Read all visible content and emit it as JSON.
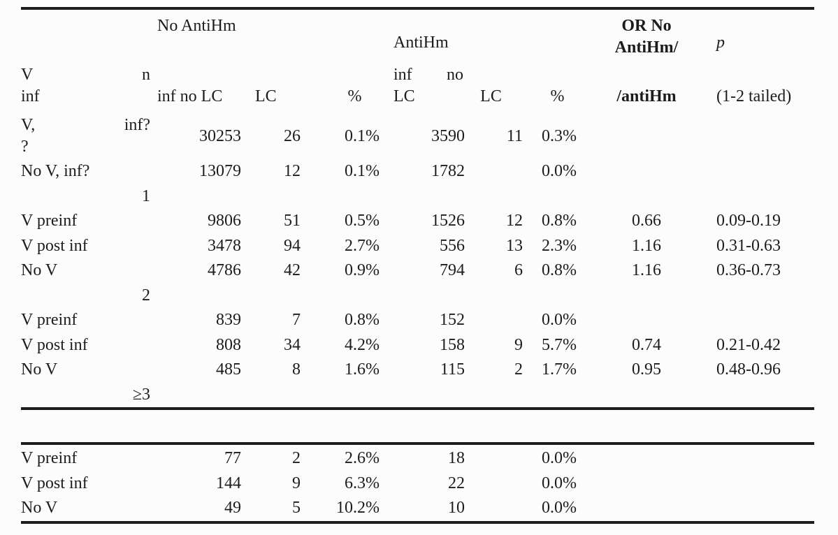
{
  "ink_color": "#1d1d1d",
  "table": {
    "header": {
      "v": "V",
      "v_line2": "inf",
      "n": "n",
      "no_antihm": "No AntiHm",
      "no_antihm_sub": "inf no LC",
      "lc_1": "LC",
      "pct_1": "%",
      "antihm": "AntiHm",
      "antihm_sub_inf": "inf",
      "antihm_sub_no": "no",
      "antihm_sub_lc": "LC",
      "lc_2": "LC",
      "pct_2": "%",
      "or_top": "OR No AntiHm/",
      "or_sub": "/antiHm",
      "p": "p",
      "p_sub": "(1-2 tailed)"
    },
    "section_a": [
      {
        "type": "split",
        "l": "V,",
        "r": "inf?",
        "l2": "?",
        "c": [
          "30253",
          "26",
          "0.1%",
          "3590",
          "11",
          "0.3%",
          "",
          ""
        ]
      },
      {
        "type": "data",
        "l": "No V, inf?",
        "r": "",
        "l2": "",
        "c": [
          "13079",
          "12",
          "0.1%",
          "1782",
          "",
          "0.0%",
          "",
          ""
        ]
      },
      {
        "type": "n",
        "l": "",
        "r": "1",
        "l2": "",
        "c": [
          "",
          "",
          "",
          "",
          "",
          "",
          "",
          ""
        ]
      },
      {
        "type": "data",
        "l": "V preinf",
        "r": "",
        "l2": "",
        "c": [
          "9806",
          "51",
          "0.5%",
          "1526",
          "12",
          "0.8%",
          "0.66",
          "0.09-0.19"
        ]
      },
      {
        "type": "data",
        "l": "V post inf",
        "r": "",
        "l2": "",
        "c": [
          "3478",
          "94",
          "2.7%",
          "556",
          "13",
          "2.3%",
          "1.16",
          "0.31-0.63"
        ]
      },
      {
        "type": "data",
        "l": "No V",
        "r": "",
        "l2": "",
        "c": [
          "4786",
          "42",
          "0.9%",
          "794",
          "6",
          "0.8%",
          "1.16",
          "0.36-0.73"
        ]
      },
      {
        "type": "n",
        "l": "",
        "r": "2",
        "l2": "",
        "c": [
          "",
          "",
          "",
          "",
          "",
          "",
          "",
          ""
        ]
      },
      {
        "type": "data",
        "l": "V preinf",
        "r": "",
        "l2": "",
        "c": [
          "839",
          "7",
          "0.8%",
          "152",
          "",
          "0.0%",
          "",
          ""
        ]
      },
      {
        "type": "data",
        "l": "V post inf",
        "r": "",
        "l2": "",
        "c": [
          "808",
          "34",
          "4.2%",
          "158",
          "9",
          "5.7%",
          "0.74",
          "0.21-0.42"
        ]
      },
      {
        "type": "data",
        "l": "No V",
        "r": "",
        "l2": "",
        "c": [
          "485",
          "8",
          "1.6%",
          "115",
          "2",
          "1.7%",
          "0.95",
          "0.48-0.96"
        ]
      },
      {
        "type": "n",
        "l": "",
        "r": "≥3",
        "l2": "",
        "c": [
          "",
          "",
          "",
          "",
          "",
          "",
          "",
          ""
        ]
      }
    ],
    "section_b": [
      {
        "type": "data",
        "l": "V preinf",
        "r": "",
        "l2": "",
        "c": [
          "77",
          "2",
          "2.6%",
          "18",
          "",
          "0.0%",
          "",
          ""
        ]
      },
      {
        "type": "data",
        "l": "V post inf",
        "r": "",
        "l2": "",
        "c": [
          "144",
          "9",
          "6.3%",
          "22",
          "",
          "0.0%",
          "",
          ""
        ]
      },
      {
        "type": "data",
        "l": "No V",
        "r": "",
        "l2": "",
        "c": [
          "49",
          "5",
          "10.2%",
          "10",
          "",
          "0.0%",
          "",
          ""
        ]
      }
    ]
  }
}
